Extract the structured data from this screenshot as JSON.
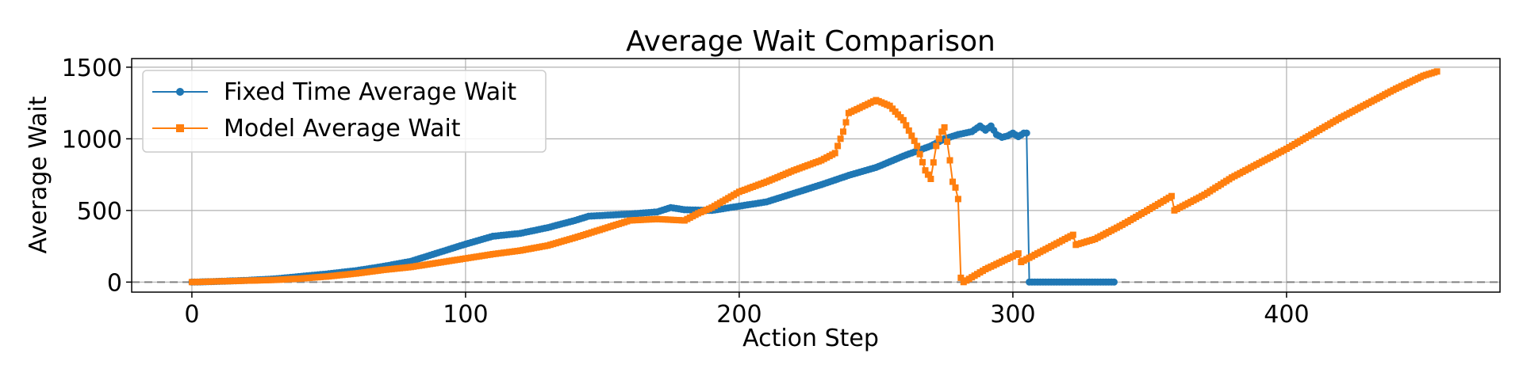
{
  "chart_data": {
    "type": "line",
    "title": "Average Wait Comparison",
    "xlabel": "Action Step",
    "ylabel": "Average Wait",
    "xlim": [
      -22,
      478
    ],
    "ylim": [
      -70,
      1560
    ],
    "xticks": [
      0,
      100,
      200,
      300,
      400
    ],
    "yticks": [
      0,
      500,
      1000,
      1500
    ],
    "grid": true,
    "legend_position": "top-left",
    "reference_line": {
      "y": 0,
      "style": "dashed",
      "color": "#808080"
    },
    "series": [
      {
        "name": "Fixed Time Average Wait",
        "color": "#1f77b4",
        "marker": "circle",
        "points": [
          [
            0,
            0
          ],
          [
            10,
            5
          ],
          [
            20,
            12
          ],
          [
            30,
            22
          ],
          [
            40,
            40
          ],
          [
            50,
            58
          ],
          [
            60,
            80
          ],
          [
            70,
            110
          ],
          [
            80,
            145
          ],
          [
            90,
            205
          ],
          [
            100,
            265
          ],
          [
            110,
            320
          ],
          [
            120,
            340
          ],
          [
            130,
            380
          ],
          [
            140,
            430
          ],
          [
            145,
            460
          ],
          [
            150,
            465
          ],
          [
            160,
            475
          ],
          [
            170,
            490
          ],
          [
            175,
            520
          ],
          [
            180,
            505
          ],
          [
            190,
            500
          ],
          [
            200,
            530
          ],
          [
            210,
            560
          ],
          [
            220,
            620
          ],
          [
            230,
            680
          ],
          [
            240,
            745
          ],
          [
            250,
            800
          ],
          [
            260,
            880
          ],
          [
            270,
            950
          ],
          [
            275,
            1000
          ],
          [
            280,
            1030
          ],
          [
            285,
            1050
          ],
          [
            288,
            1090
          ],
          [
            290,
            1060
          ],
          [
            292,
            1090
          ],
          [
            294,
            1030
          ],
          [
            296,
            1010
          ],
          [
            298,
            1020
          ],
          [
            300,
            1040
          ],
          [
            302,
            1015
          ],
          [
            304,
            1040
          ],
          [
            305,
            1040
          ],
          [
            306,
            0
          ],
          [
            310,
            0
          ],
          [
            320,
            0
          ],
          [
            330,
            0
          ],
          [
            337,
            0
          ]
        ]
      },
      {
        "name": "Model Average Wait",
        "color": "#ff7f0e",
        "marker": "square",
        "points": [
          [
            0,
            0
          ],
          [
            10,
            5
          ],
          [
            20,
            10
          ],
          [
            30,
            15
          ],
          [
            40,
            25
          ],
          [
            50,
            40
          ],
          [
            60,
            60
          ],
          [
            70,
            85
          ],
          [
            80,
            105
          ],
          [
            90,
            135
          ],
          [
            100,
            165
          ],
          [
            110,
            195
          ],
          [
            120,
            220
          ],
          [
            130,
            255
          ],
          [
            140,
            310
          ],
          [
            150,
            370
          ],
          [
            160,
            430
          ],
          [
            170,
            440
          ],
          [
            180,
            430
          ],
          [
            185,
            480
          ],
          [
            190,
            520
          ],
          [
            200,
            630
          ],
          [
            210,
            700
          ],
          [
            220,
            780
          ],
          [
            230,
            850
          ],
          [
            235,
            900
          ],
          [
            238,
            1050
          ],
          [
            240,
            1180
          ],
          [
            250,
            1270
          ],
          [
            255,
            1230
          ],
          [
            260,
            1130
          ],
          [
            265,
            950
          ],
          [
            268,
            780
          ],
          [
            270,
            720
          ],
          [
            272,
            950
          ],
          [
            274,
            1050
          ],
          [
            275,
            1080
          ],
          [
            276,
            980
          ],
          [
            277,
            850
          ],
          [
            278,
            700
          ],
          [
            279,
            660
          ],
          [
            280,
            580
          ],
          [
            281,
            30
          ],
          [
            282,
            0
          ],
          [
            290,
            90
          ],
          [
            300,
            180
          ],
          [
            302,
            200
          ],
          [
            303,
            140
          ],
          [
            310,
            210
          ],
          [
            320,
            310
          ],
          [
            322,
            330
          ],
          [
            323,
            260
          ],
          [
            330,
            300
          ],
          [
            340,
            400
          ],
          [
            350,
            510
          ],
          [
            358,
            600
          ],
          [
            359,
            500
          ],
          [
            370,
            610
          ],
          [
            380,
            730
          ],
          [
            390,
            830
          ],
          [
            400,
            930
          ],
          [
            410,
            1040
          ],
          [
            420,
            1150
          ],
          [
            430,
            1250
          ],
          [
            440,
            1350
          ],
          [
            450,
            1440
          ],
          [
            455,
            1470
          ]
        ]
      }
    ]
  }
}
